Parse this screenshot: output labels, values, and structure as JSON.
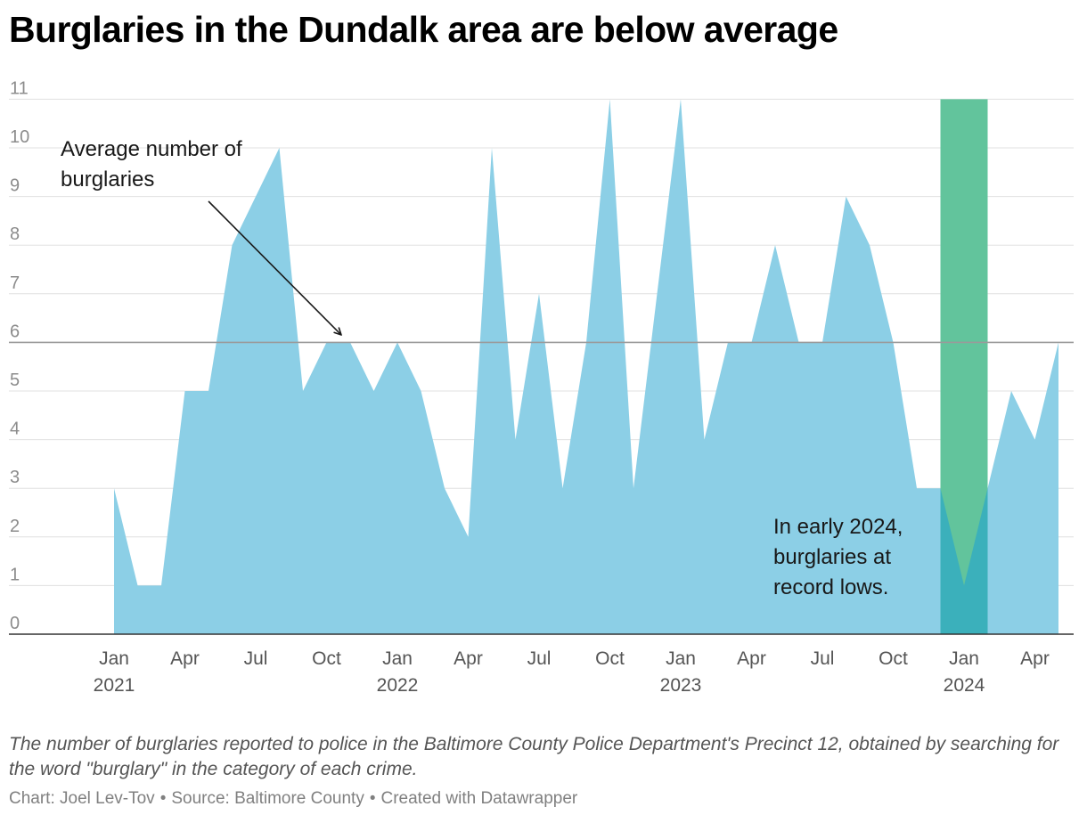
{
  "colors": {
    "area": "#8ccfe6",
    "highlight": "#62c49c",
    "overlap": "#3bb0bb",
    "grid": "#e0e0e0",
    "average_line": "#9a9a9a",
    "axis": "#333333"
  },
  "chart_data": {
    "type": "area",
    "title": "Burglaries in the Dundalk area are below average",
    "xlabel": "",
    "ylabel": "",
    "ylim": [
      0,
      11
    ],
    "y_ticks": [
      "0",
      "1",
      "2",
      "3",
      "4",
      "5",
      "6",
      "7",
      "8",
      "9",
      "10",
      "11"
    ],
    "x_ticks": [
      {
        "month_index": 0,
        "label": "Jan",
        "year": "2021"
      },
      {
        "month_index": 3,
        "label": "Apr",
        "year": ""
      },
      {
        "month_index": 6,
        "label": "Jul",
        "year": ""
      },
      {
        "month_index": 9,
        "label": "Oct",
        "year": ""
      },
      {
        "month_index": 12,
        "label": "Jan",
        "year": "2022"
      },
      {
        "month_index": 15,
        "label": "Apr",
        "year": ""
      },
      {
        "month_index": 18,
        "label": "Jul",
        "year": ""
      },
      {
        "month_index": 21,
        "label": "Oct",
        "year": ""
      },
      {
        "month_index": 24,
        "label": "Jan",
        "year": "2023"
      },
      {
        "month_index": 27,
        "label": "Apr",
        "year": ""
      },
      {
        "month_index": 30,
        "label": "Jul",
        "year": ""
      },
      {
        "month_index": 33,
        "label": "Oct",
        "year": ""
      },
      {
        "month_index": 36,
        "label": "Jan",
        "year": "2024"
      },
      {
        "month_index": 39,
        "label": "Apr",
        "year": ""
      }
    ],
    "series": [
      {
        "name": "Burglaries",
        "start": "Jan 2021",
        "values": [
          3,
          1,
          1,
          5,
          5,
          8,
          9,
          10,
          5,
          6,
          6,
          5,
          6,
          5,
          3,
          2,
          10,
          4,
          7,
          3,
          6,
          11,
          3,
          7,
          11,
          4,
          6,
          6,
          8,
          6,
          6,
          9,
          8,
          6,
          3,
          3,
          1,
          3,
          5,
          4,
          6
        ]
      }
    ],
    "average": 6,
    "highlight_range": {
      "from": "Dec 2023",
      "to": "Jan 2024",
      "from_index": 35,
      "to_index": 37
    },
    "annotations": [
      {
        "id": "average",
        "lines": [
          "Average number of",
          "burglaries"
        ]
      },
      {
        "id": "record-lows",
        "lines": [
          "In early 2024,",
          "burglaries at",
          "record lows."
        ]
      }
    ]
  },
  "notes": "The number of burglaries reported to police in the Baltimore County Police Department's Precinct 12, obtained by searching for the word \"burglary\" in the category of each crime.",
  "source": {
    "chart": "Chart: Joel Lev-Tov",
    "separator": "•",
    "source": "Source: Baltimore County",
    "created": "Created with Datawrapper"
  }
}
